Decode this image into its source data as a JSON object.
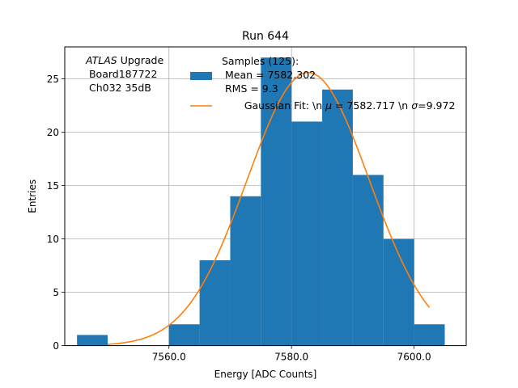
{
  "chart_data": {
    "type": "bar",
    "title": "Run 644",
    "xlabel": "Energy [ADC Counts]",
    "ylabel": "Entries",
    "xlim": [
      7543.0,
      7608.5
    ],
    "ylim": [
      0,
      28
    ],
    "grid": true,
    "x_ticks": [
      7560,
      7580,
      7600
    ],
    "x_tick_labels": [
      "7560.0",
      "7580.0",
      "7600.0"
    ],
    "y_ticks": [
      0,
      5,
      10,
      15,
      20,
      25
    ],
    "y_tick_labels": [
      "0",
      "5",
      "10",
      "15",
      "20",
      "25"
    ],
    "histogram": {
      "name": "Samples (125):\n Mean = 7582.302\n RMS = 9.3",
      "color": "#1f77b4",
      "bin_edges": [
        7545,
        7550,
        7555,
        7560,
        7565,
        7570,
        7575,
        7580,
        7585,
        7590,
        7595,
        7600,
        7605
      ],
      "counts": [
        1,
        0,
        0,
        2,
        8,
        14,
        27,
        21,
        24,
        16,
        10,
        2
      ]
    },
    "fit": {
      "name": "Gaussian Fit: \\n μ = 7582.717 \\n σ=9.972",
      "color": "#ff7f0e",
      "type": "gaussian",
      "mu": 7582.717,
      "sigma": 9.972,
      "amplitude": 25.6,
      "x_range": [
        7550,
        7602.5
      ]
    },
    "legend": {
      "placement": "top-right",
      "hist_lines": [
        "Samples (125):",
        " Mean = 7582.302",
        " RMS = 9.3"
      ],
      "fit_prefix": "Gaussian Fit: \\n ",
      "mu_symbol": "μ",
      "fit_mid": " = 7582.717 \\n ",
      "sigma_symbol": "σ",
      "fit_suffix": "=9.972"
    },
    "annotation": {
      "placement": "top-left",
      "italic": "ATLAS",
      "line1_rest": " Upgrade",
      "line2": " Board187722",
      "line3": " Ch032 35dB"
    }
  }
}
